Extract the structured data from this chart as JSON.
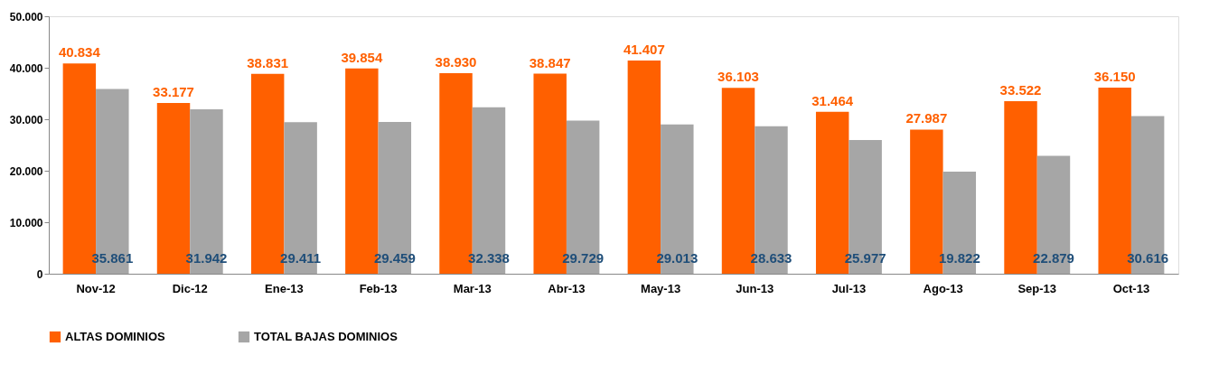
{
  "chart_data": {
    "type": "bar",
    "categories": [
      "Nov-12",
      "Dic-12",
      "Ene-13",
      "Feb-13",
      "Mar-13",
      "Abr-13",
      "May-13",
      "Jun-13",
      "Jul-13",
      "Ago-13",
      "Sep-13",
      "Oct-13"
    ],
    "series": [
      {
        "name": "ALTAS DOMINIOS",
        "color": "#ff6000",
        "values": [
          40834,
          33177,
          38831,
          39854,
          38930,
          38847,
          41407,
          36103,
          31464,
          27987,
          33522,
          36150
        ],
        "value_labels": [
          "40.834",
          "33.177",
          "38.831",
          "39.854",
          "38.930",
          "38.847",
          "41.407",
          "36.103",
          "31.464",
          "27.987",
          "33.522",
          "36.150"
        ]
      },
      {
        "name": "TOTAL BAJAS DOMINIOS",
        "color": "#a6a6a6",
        "values": [
          35861,
          31942,
          29411,
          29459,
          32338,
          29729,
          29013,
          28633,
          25977,
          19822,
          22879,
          30616
        ],
        "value_labels": [
          "35.861",
          "31.942",
          "29.411",
          "29.459",
          "32.338",
          "29.729",
          "29.013",
          "28.633",
          "25.977",
          "19.822",
          "22.879",
          "30.616"
        ]
      }
    ],
    "ylim": [
      0,
      50000
    ],
    "yticks": [
      0,
      {
        "value": 10000,
        "label": "10.000"
      },
      {
        "value": 20000,
        "label": "20.000"
      },
      {
        "value": 30000,
        "label": "30.000"
      },
      {
        "value": 40000,
        "label": "40.000"
      },
      {
        "value": 50000,
        "label": "50.000"
      }
    ],
    "grid": false,
    "legend": "bottom"
  }
}
